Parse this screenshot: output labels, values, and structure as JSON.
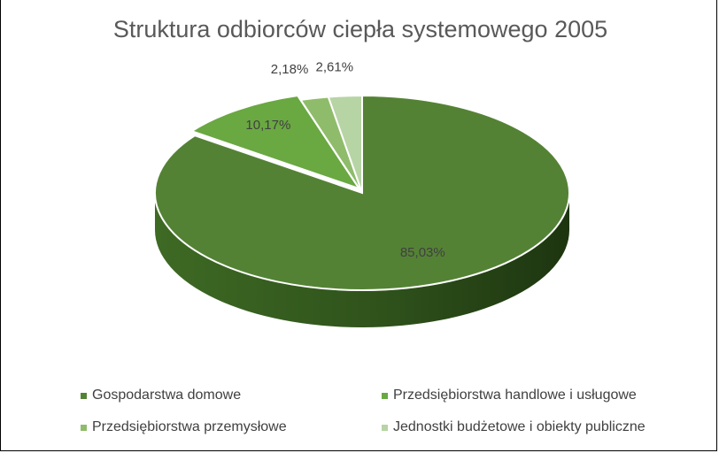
{
  "chart_data": {
    "type": "pie",
    "title": "Struktura odbiorców ciepła systemowego 2005",
    "series": [
      {
        "slices": [
          {
            "label": "Gospodarstwa domowe",
            "value": 85.03,
            "value_label": "85,03%",
            "color": "#548235"
          },
          {
            "label": "Przedsiębiorstwa handlowe i usługowe",
            "value": 10.17,
            "value_label": "10,17%",
            "color": "#6aa842"
          },
          {
            "label": "Przedsiębiorstwa przemysłowe",
            "value": 2.18,
            "value_label": "2,18%",
            "color": "#8fbc6a"
          },
          {
            "label": "Jednostki budżetowe i obiekty publiczne",
            "value": 2.61,
            "value_label": "2,61%",
            "color": "#b7d4a5"
          }
        ]
      }
    ],
    "legend_position": "bottom"
  }
}
